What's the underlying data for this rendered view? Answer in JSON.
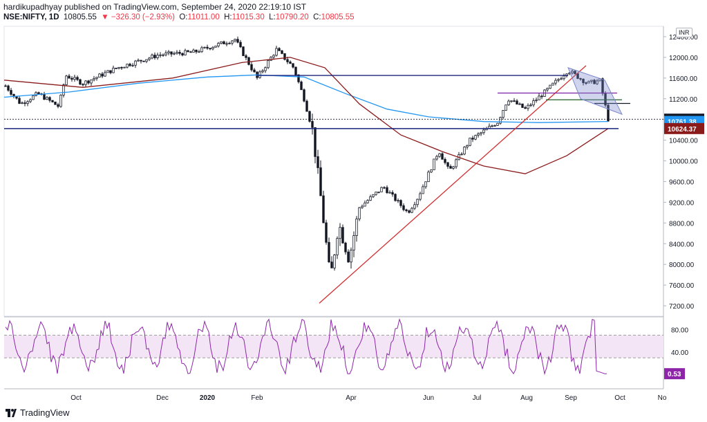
{
  "header": {
    "published_line": "hardikupadhyay published on TradingView.com, September 24, 2020 22:19:10 IST",
    "symbol": "NSE:NIFTY, 1D",
    "last": "10805.55",
    "change": "▼ −326.30 (−2.93%)",
    "o_label": "O:",
    "o_value": "11011.00",
    "h_label": "H:",
    "h_value": "11015.30",
    "l_label": "L:",
    "l_value": "10790.20",
    "c_label": "C:",
    "c_value": "10805.55"
  },
  "currency_badge": "INR",
  "footer": {
    "brand": "TradingView"
  },
  "colors": {
    "bull": "#131722",
    "bear": "#131722",
    "ma_blue": "#2196f3",
    "ma_red": "#8b1a1a",
    "trend_red": "#d32f2f",
    "line_navy": "#1a237e",
    "line_purple": "#7b1fa2",
    "line_green": "#1b5e20",
    "rsi_line": "#8e24aa",
    "rsi_band": "#f3e5f5",
    "last_price_bg": "#131722",
    "blue_label_bg": "#2196f3",
    "red_label_bg": "#8b1a1a"
  },
  "chart_data": {
    "type": "candlestick",
    "price_axis": {
      "ticks": [
        "12400.00",
        "12000.00",
        "11600.00",
        "11200.00",
        "10800.00",
        "10400.00",
        "10000.00",
        "9600.00",
        "9200.00",
        "8800.00",
        "8400.00",
        "8000.00",
        "7600.00",
        "7200.00"
      ],
      "range": [
        7000,
        12800
      ]
    },
    "price_labels": [
      {
        "text": "10805.55",
        "value": 10805.55,
        "style": "last"
      },
      {
        "text": "10761.38",
        "value": 10761.38,
        "style": "blue"
      },
      {
        "text": "10624.37",
        "value": 10624.37,
        "style": "red"
      }
    ],
    "rsi_axis": {
      "ticks": [
        "80.00",
        "40.00"
      ],
      "range": [
        0,
        100
      ],
      "band": [
        30,
        70
      ]
    },
    "rsi_label": "0.53",
    "time_axis": [
      "Oct",
      "Dec",
      "2020",
      "Feb",
      "Apr",
      "Jun",
      "Jul",
      "Aug",
      "Sep",
      "Oct",
      "No"
    ],
    "ohlc_last": {
      "open": 11011.0,
      "high": 11015.3,
      "low": 10790.2,
      "close": 10805.55
    }
  }
}
